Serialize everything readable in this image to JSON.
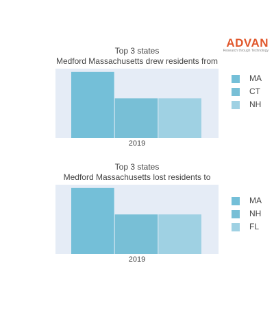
{
  "brand": {
    "name": "ADVAN",
    "tagline": "Research through Technology"
  },
  "colors": {
    "plot_bg": "#e5ecf6",
    "accent": "#e0572b"
  },
  "chart_data": [
    {
      "type": "bar",
      "title": "Top 3 states",
      "subtitle": "Medford Massachusetts drew residents from",
      "categories": [
        "2019"
      ],
      "series": [
        {
          "name": "MA",
          "values": [
            100
          ],
          "color": "#74bfd8"
        },
        {
          "name": "CT",
          "values": [
            60
          ],
          "color": "#78bfd6"
        },
        {
          "name": "NH",
          "values": [
            60
          ],
          "color": "#9fd1e3"
        }
      ],
      "ylim": [
        0,
        105
      ],
      "legend": "right",
      "grid": false
    },
    {
      "type": "bar",
      "title": "Top 3 states",
      "subtitle": "Medford Massachusetts lost residents to",
      "categories": [
        "2019"
      ],
      "series": [
        {
          "name": "MA",
          "values": [
            100
          ],
          "color": "#74bfd8"
        },
        {
          "name": "NH",
          "values": [
            60
          ],
          "color": "#78bfd6"
        },
        {
          "name": "FL",
          "values": [
            60
          ],
          "color": "#9fd1e3"
        }
      ],
      "ylim": [
        0,
        105
      ],
      "legend": "right",
      "grid": false
    }
  ]
}
